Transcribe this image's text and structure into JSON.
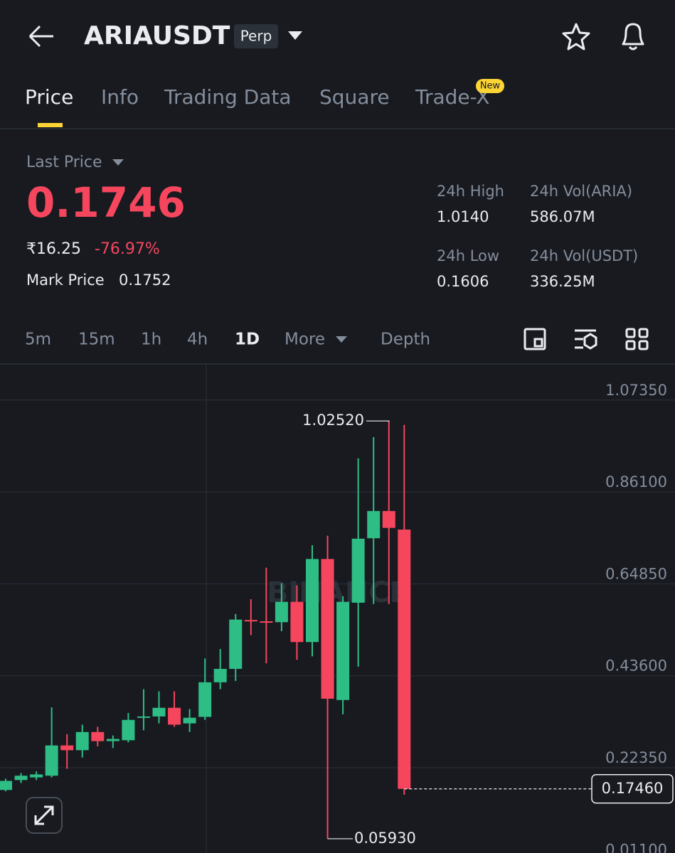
{
  "header": {
    "symbol": "ARIAUSDT",
    "badge": "Perp"
  },
  "tabs": {
    "items": [
      "Price",
      "Info",
      "Trading Data",
      "Square",
      "Trade-X"
    ],
    "new_badge": "New"
  },
  "price": {
    "last_price_label": "Last Price",
    "last_price": "0.1746",
    "fiat": "₹16.25",
    "change": "-76.97%",
    "mark_price_label": "Mark Price",
    "mark_price": "0.1752"
  },
  "stats": [
    {
      "label": "24h High",
      "value": "1.0140"
    },
    {
      "label": "24h Vol(ARIA)",
      "value": "586.07M"
    },
    {
      "label": "24h Low",
      "value": "0.1606"
    },
    {
      "label": "24h Vol(USDT)",
      "value": "336.25M"
    }
  ],
  "intervals": [
    "5m",
    "15m",
    "1h",
    "4h",
    "1D",
    "More",
    "Depth"
  ],
  "chart_data": {
    "type": "candlestick",
    "watermark": "BINANCE",
    "up_color": "#2ebd85",
    "down_color": "#f6465d",
    "grid": true,
    "ylim": [
      0.0263,
      1.157
    ],
    "yticks": [
      {
        "value": 1.0735,
        "label": "1.07350"
      },
      {
        "value": 0.861,
        "label": "0.86100"
      },
      {
        "value": 0.6485,
        "label": "0.64850"
      },
      {
        "value": 0.436,
        "label": "0.43600"
      },
      {
        "value": 0.2235,
        "label": "0.22350"
      },
      {
        "value": 0.011,
        "label": "0.01100"
      }
    ],
    "open": [
      0.172,
      0.195,
      0.201,
      0.205,
      0.275,
      0.264,
      0.306,
      0.285,
      0.287,
      0.339,
      0.342,
      0.362,
      0.326,
      0.341,
      0.421,
      0.452,
      0.565,
      0.562,
      0.56,
      0.607,
      0.514,
      0.706,
      0.38,
      0.605,
      0.754,
      0.817,
      0.774
    ],
    "high": [
      0.198,
      0.211,
      0.215,
      0.363,
      0.301,
      0.323,
      0.318,
      0.298,
      0.35,
      0.405,
      0.4,
      0.4,
      0.359,
      0.476,
      0.498,
      0.579,
      0.613,
      0.686,
      0.65,
      0.645,
      0.738,
      0.76,
      0.62,
      0.939,
      0.988,
      1.0252,
      1.016
    ],
    "low": [
      0.169,
      0.188,
      0.195,
      0.201,
      0.221,
      0.247,
      0.273,
      0.269,
      0.282,
      0.31,
      0.326,
      0.318,
      0.306,
      0.334,
      0.405,
      0.424,
      0.53,
      0.465,
      0.539,
      0.473,
      0.481,
      0.0593,
      0.347,
      0.457,
      0.602,
      0.602,
      0.161
    ],
    "close": [
      0.193,
      0.205,
      0.208,
      0.275,
      0.264,
      0.306,
      0.285,
      0.29,
      0.334,
      0.342,
      0.362,
      0.323,
      0.339,
      0.421,
      0.452,
      0.566,
      0.562,
      0.56,
      0.607,
      0.514,
      0.706,
      0.383,
      0.607,
      0.753,
      0.817,
      0.778,
      0.1746
    ],
    "high_label": {
      "value": 1.0252,
      "label": "1.02520"
    },
    "low_label": {
      "value": 0.0593,
      "label": "0.05930"
    },
    "last_label": {
      "value": 0.1746,
      "label": "0.17460"
    }
  }
}
